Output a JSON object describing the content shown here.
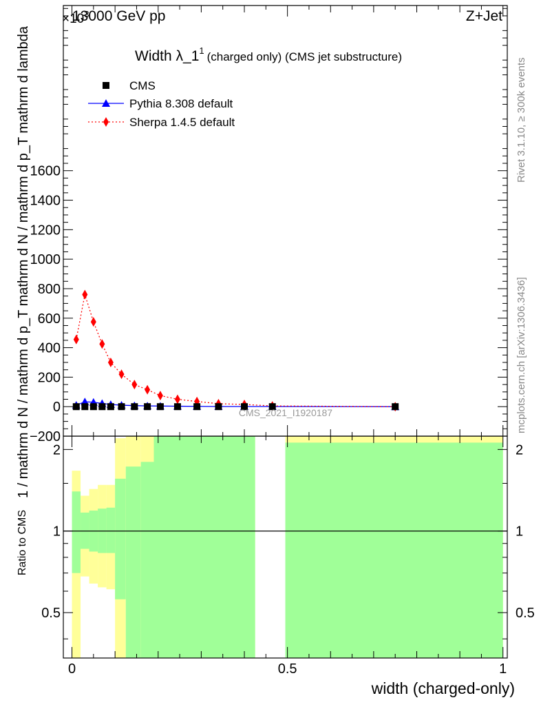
{
  "header": {
    "energy_label": "13000 GeV pp",
    "process_label": "Z+Jet",
    "rivet_label": "Rivet 3.1.10, ≥ 300k events",
    "mcplots_label": "mcplots.cern.ch [arXiv:1306.3436]",
    "analysis_label": "CMS_2021_I1920187"
  },
  "chart_data": [
    {
      "type": "scatter",
      "title": "Width λ_1",
      "title_superscript": "1",
      "subtitle": "(charged only) (CMS jet substructure)",
      "ylabel": "1 / mathrm d N / mathrm d p_T mathrm d N / mathrm d p_T mathrm d lambda",
      "y_multiplier": "×10",
      "y_multiplier_exponent": "3",
      "xlim": [
        -0.02,
        1.01
      ],
      "ylim": [
        -200,
        2720
      ],
      "y_ticks": [
        "−200",
        "0",
        "200",
        "400",
        "600",
        "800",
        "1000",
        "1200",
        "1400",
        "1600"
      ],
      "legend": [
        "CMS",
        "Pythia 8.308 default",
        "Sherpa 1.4.5 default"
      ],
      "legend_position": "top-left",
      "series": [
        {
          "name": "CMS",
          "color": "#000000",
          "marker": "square",
          "x": [
            0.01,
            0.03,
            0.05,
            0.07,
            0.09,
            0.115,
            0.145,
            0.175,
            0.205,
            0.245,
            0.29,
            0.34,
            0.4,
            0.465,
            0.75
          ],
          "y": [
            0,
            0,
            0,
            0,
            0,
            0,
            0,
            0,
            0,
            0,
            0,
            0,
            0,
            0,
            0
          ]
        },
        {
          "name": "Pythia 8.308 default",
          "color": "#0000ff",
          "marker": "triangle",
          "x": [
            0.01,
            0.03,
            0.05,
            0.07,
            0.09,
            0.115,
            0.145,
            0.175,
            0.205,
            0.245,
            0.29,
            0.34,
            0.4,
            0.465,
            0.75
          ],
          "y": [
            10,
            33,
            30,
            22,
            15,
            10,
            7,
            5,
            4,
            3,
            2,
            1,
            1,
            1,
            0
          ]
        },
        {
          "name": "Sherpa 1.4.5 default",
          "color": "#ff0000",
          "marker": "diamond",
          "x": [
            0.01,
            0.03,
            0.05,
            0.07,
            0.09,
            0.115,
            0.145,
            0.175,
            0.205,
            0.245,
            0.29,
            0.34,
            0.4,
            0.465,
            0.75
          ],
          "y": [
            455,
            760,
            575,
            425,
            300,
            220,
            150,
            115,
            75,
            50,
            35,
            20,
            15,
            5,
            0
          ]
        }
      ]
    },
    {
      "type": "area",
      "ylabel": "Ratio to CMS",
      "xlabel": "width (charged-only)",
      "xlim": [
        -0.02,
        1.01
      ],
      "ylim": [
        0.34,
        2.24
      ],
      "y_ticks": [
        "0.5",
        "1",
        "2"
      ],
      "x_ticks": [
        "0",
        "0.5",
        "1"
      ],
      "reference_line": 1,
      "band_colors": {
        "stat": "#a0ff98",
        "total": "#ffff99"
      },
      "bins": [
        {
          "lo": 0.0,
          "hi": 0.02,
          "stat_lo": 0.7,
          "stat_hi": 1.4,
          "tot_lo": 0.34,
          "tot_hi": 1.67
        },
        {
          "lo": 0.02,
          "hi": 0.04,
          "stat_lo": 0.86,
          "stat_hi": 1.17,
          "tot_lo": 0.68,
          "tot_hi": 1.35
        },
        {
          "lo": 0.04,
          "hi": 0.06,
          "stat_lo": 0.84,
          "stat_hi": 1.19,
          "tot_lo": 0.64,
          "tot_hi": 1.43
        },
        {
          "lo": 0.06,
          "hi": 0.08,
          "stat_lo": 0.83,
          "stat_hi": 1.21,
          "tot_lo": 0.62,
          "tot_hi": 1.48
        },
        {
          "lo": 0.08,
          "hi": 0.1,
          "stat_lo": 0.83,
          "stat_hi": 1.22,
          "tot_lo": 0.61,
          "tot_hi": 1.48
        },
        {
          "lo": 0.1,
          "hi": 0.125,
          "stat_lo": 0.56,
          "stat_hi": 1.56,
          "tot_lo": 0.34,
          "tot_hi": 2.2
        },
        {
          "lo": 0.125,
          "hi": 0.16,
          "stat_lo": 0.34,
          "stat_hi": 1.73,
          "tot_lo": 0.34,
          "tot_hi": 2.24
        },
        {
          "lo": 0.16,
          "hi": 0.19,
          "stat_lo": 0.34,
          "stat_hi": 1.8,
          "tot_lo": 0.34,
          "tot_hi": 2.24
        },
        {
          "lo": 0.19,
          "hi": 0.425,
          "stat_lo": 0.34,
          "stat_hi": 2.24,
          "tot_lo": 0.34,
          "tot_hi": 2.24
        },
        {
          "lo": 0.495,
          "hi": 1.0,
          "stat_lo": 0.34,
          "stat_hi": 2.12,
          "tot_lo": 0.34,
          "tot_hi": 2.24
        }
      ]
    }
  ]
}
